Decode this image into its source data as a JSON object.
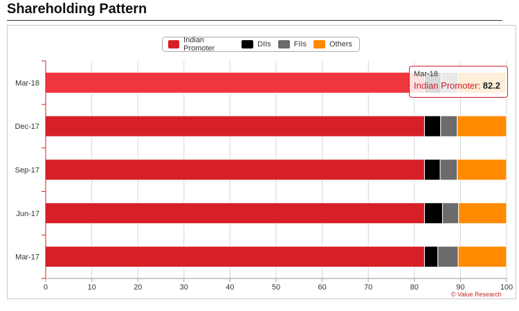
{
  "page": {
    "title": "Shareholding Pattern"
  },
  "legend": [
    {
      "name": "Indian Promoter",
      "color": "#d71f27"
    },
    {
      "name": "DIIs",
      "color": "#000000"
    },
    {
      "name": "FIIs",
      "color": "#6b6b6b"
    },
    {
      "name": "Others",
      "color": "#ff8a00"
    }
  ],
  "tooltip": {
    "category": "Mar-18",
    "series": "Indian Promoter",
    "value": "82.2"
  },
  "credit": "© Value Research",
  "chart_data": {
    "type": "bar",
    "orientation": "horizontal",
    "stacked": true,
    "title": "Shareholding Pattern",
    "categories": [
      "Mar-18",
      "Dec-17",
      "Sep-17",
      "Jun-17",
      "Mar-17"
    ],
    "series": [
      {
        "name": "Indian Promoter",
        "color": "#d71f27",
        "values": [
          82.2,
          82.2,
          82.2,
          82.2,
          82.2
        ]
      },
      {
        "name": "DIIs",
        "color": "#000000",
        "values": [
          3.6,
          3.5,
          3.4,
          3.9,
          2.9
        ]
      },
      {
        "name": "FIIs",
        "color": "#6b6b6b",
        "values": [
          3.7,
          3.6,
          3.7,
          3.5,
          4.4
        ]
      },
      {
        "name": "Others",
        "color": "#ff8a00",
        "values": [
          10.5,
          10.7,
          10.7,
          10.4,
          10.5
        ]
      }
    ],
    "xlim": [
      0,
      100
    ],
    "xticks": [
      0,
      10,
      20,
      30,
      40,
      50,
      60,
      70,
      80,
      90,
      100
    ],
    "grid": true,
    "legend_position": "top-center",
    "highlighted_category": "Mar-18"
  }
}
